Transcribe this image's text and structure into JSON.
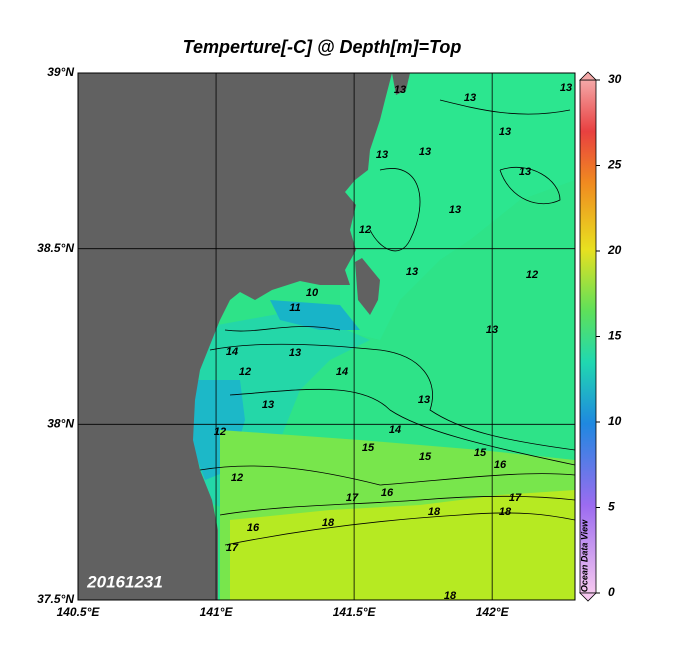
{
  "title": "Temperture[-C] @ Depth[m]=Top",
  "date": "20161231",
  "watermark": "Ocean Data View",
  "map": {
    "xlim": [
      140.5,
      142.3
    ],
    "ylim": [
      37.5,
      39
    ],
    "xticks": [
      {
        "value": 140.5,
        "label": "140.5°E"
      },
      {
        "value": 141,
        "label": "141°E"
      },
      {
        "value": 141.5,
        "label": "141.5°E"
      },
      {
        "value": 142,
        "label": "142°E"
      }
    ],
    "yticks": [
      {
        "value": 37.5,
        "label": "37.5°N"
      },
      {
        "value": 38,
        "label": "38°N"
      },
      {
        "value": 38.5,
        "label": "38.5°N"
      },
      {
        "value": 39,
        "label": "39°N"
      }
    ],
    "grid": true
  },
  "colorbar": {
    "lim": [
      0,
      30
    ],
    "ticks": [
      0,
      5,
      10,
      15,
      20,
      25,
      30
    ]
  },
  "contour_labels": [
    13,
    13,
    13,
    13,
    13,
    13,
    13,
    12,
    13,
    12,
    13,
    11,
    10,
    13,
    14,
    12,
    14,
    13,
    13,
    12,
    14,
    13,
    15,
    15,
    15,
    16,
    12,
    17,
    16,
    17,
    18,
    16,
    18,
    18,
    18,
    17
  ]
}
